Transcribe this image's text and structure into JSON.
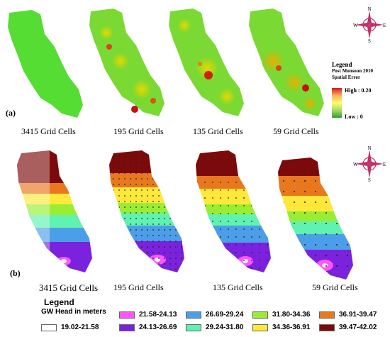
{
  "panel_a": {
    "label": "(a)",
    "captions": [
      "3415 Grid Cells",
      "195 Grid Cells",
      "135 Grid Cells",
      "59 Grid Cells"
    ],
    "legend": {
      "title": "Legend",
      "subtitle1": "Post Monsoon 2010",
      "subtitle2": "Spatial Error",
      "high": "High : 0.20",
      "low": "Low : 0"
    }
  },
  "panel_b": {
    "label": "(b)",
    "captions": [
      "3415 Grid Cells",
      "195 Grid Cells",
      "135 Grid Cells",
      "59 Grid Cells"
    ],
    "legend": {
      "title": "Legend",
      "subtitle": "GW Head in meters",
      "classes": [
        {
          "range": "19.02-21.58",
          "color": "#ffffff"
        },
        {
          "range": "21.58-24.13",
          "color": "#ff55ff"
        },
        {
          "range": "24.13-26.69",
          "color": "#7a22dd"
        },
        {
          "range": "26.69-29.24",
          "color": "#4c9ee8"
        },
        {
          "range": "29.24-31.80",
          "color": "#5ff2b0"
        },
        {
          "range": "31.80-34.36",
          "color": "#99ee33"
        },
        {
          "range": "34.36-36.91",
          "color": "#ffe83a"
        },
        {
          "range": "36.91-39.47",
          "color": "#e8771d"
        },
        {
          "range": "39.47-42.02",
          "color": "#7d0a0a"
        }
      ]
    }
  },
  "compass": {
    "n": "N",
    "s": "S",
    "e": "E",
    "w": "W"
  },
  "colors": {
    "error_high": "#d7191c",
    "error_low": "#2ca02c",
    "error_mid": "#ffff66"
  }
}
